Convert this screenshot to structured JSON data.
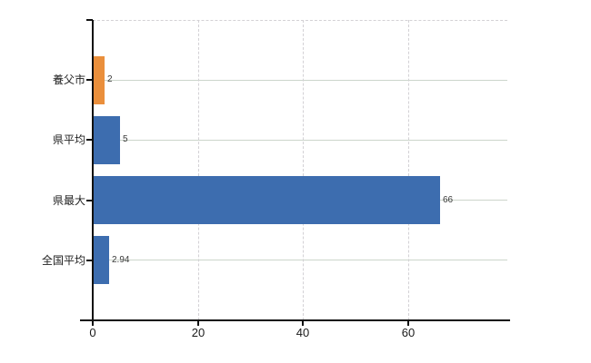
{
  "chart_data": {
    "type": "bar",
    "orientation": "horizontal",
    "title": "",
    "categories": [
      "養父市",
      "県平均",
      "県最大",
      "全国平均"
    ],
    "values": [
      2,
      5,
      66,
      2.94
    ],
    "value_labels": [
      "2",
      "5",
      "66",
      "2.94"
    ],
    "bar_colors": [
      "#ea8f3c",
      "#3d6daf",
      "#3d6daf",
      "#3d6daf"
    ],
    "x_ticks": [
      0,
      20,
      40,
      60
    ],
    "x_tick_labels": [
      "0",
      "20",
      "40",
      "60"
    ],
    "xlim": [
      0,
      79.5
    ],
    "grid": {
      "vertical": "dashed",
      "horizontal": "solid",
      "top_border": "dashed"
    },
    "legend": false,
    "colors": {
      "bar_blue": "#3d6daf",
      "bar_orange": "#ea8f3c",
      "axis": "#111111",
      "grid_horizontal": "#ccd5cb",
      "grid_vertical": "#d3d1d5",
      "value_label": "#3a3a3a",
      "category_label": "#222222",
      "tick_label": "#1a1a1a",
      "background": "#ffffff"
    }
  }
}
